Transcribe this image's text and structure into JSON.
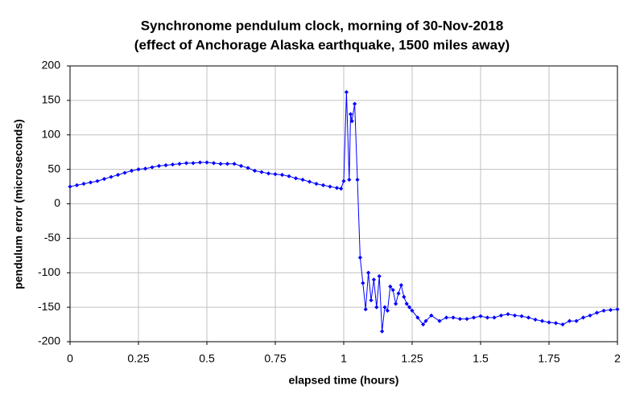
{
  "chart_data": {
    "type": "line",
    "title": "Synchronome pendulum clock, morning of 30-Nov-2018",
    "subtitle": "(effect of Anchorage Alaska earthquake, 1500 miles away)",
    "x_label": "elapsed time (hours)",
    "y_label": "pendulum error (microseconds)",
    "x": [
      0,
      0.025,
      0.05,
      0.075,
      0.1,
      0.125,
      0.15,
      0.175,
      0.2,
      0.225,
      0.25,
      0.275,
      0.3,
      0.325,
      0.35,
      0.375,
      0.4,
      0.425,
      0.45,
      0.475,
      0.5,
      0.525,
      0.55,
      0.575,
      0.6,
      0.625,
      0.65,
      0.675,
      0.7,
      0.725,
      0.75,
      0.775,
      0.8,
      0.825,
      0.85,
      0.875,
      0.9,
      0.925,
      0.95,
      0.975,
      0.99,
      1.0,
      1.01,
      1.02,
      1.025,
      1.03,
      1.04,
      1.05,
      1.06,
      1.07,
      1.08,
      1.09,
      1.1,
      1.11,
      1.12,
      1.13,
      1.14,
      1.15,
      1.16,
      1.17,
      1.18,
      1.19,
      1.2,
      1.21,
      1.22,
      1.23,
      1.24,
      1.25,
      1.27,
      1.29,
      1.3,
      1.32,
      1.35,
      1.375,
      1.4,
      1.425,
      1.45,
      1.475,
      1.5,
      1.525,
      1.55,
      1.575,
      1.6,
      1.625,
      1.65,
      1.675,
      1.7,
      1.725,
      1.75,
      1.775,
      1.8,
      1.825,
      1.85,
      1.875,
      1.9,
      1.925,
      1.95,
      1.975,
      2.0
    ],
    "series": [
      {
        "name": "pendulum error",
        "color": "#0000ff",
        "values": [
          25,
          27,
          29,
          31,
          33,
          36,
          39,
          42,
          45,
          48,
          50,
          51,
          53,
          55,
          56,
          57,
          58,
          59,
          59,
          60,
          60,
          59,
          58,
          58,
          58,
          55,
          52,
          48,
          46,
          44,
          43,
          42,
          40,
          37,
          35,
          32,
          29,
          27,
          25,
          23,
          22,
          33,
          162,
          35,
          130,
          120,
          145,
          35,
          -78,
          -115,
          -153,
          -100,
          -140,
          -110,
          -150,
          -105,
          -185,
          -150,
          -155,
          -120,
          -125,
          -145,
          -130,
          -118,
          -135,
          -145,
          -150,
          -155,
          -165,
          -175,
          -170,
          -162,
          -170,
          -165,
          -165,
          -167,
          -167,
          -165,
          -163,
          -165,
          -165,
          -162,
          -160,
          -162,
          -163,
          -165,
          -168,
          -170,
          -172,
          -173,
          -175,
          -170,
          -170,
          -165,
          -162,
          -158,
          -155,
          -154,
          -153
        ]
      }
    ],
    "xlim": [
      0,
      2
    ],
    "xticks": [
      0,
      0.25,
      0.5,
      0.75,
      1,
      1.25,
      1.5,
      1.75,
      2
    ],
    "ylim": [
      -200,
      200
    ],
    "yticks": [
      -200,
      -150,
      -100,
      -50,
      0,
      50,
      100,
      150,
      200
    ],
    "grid": true
  }
}
